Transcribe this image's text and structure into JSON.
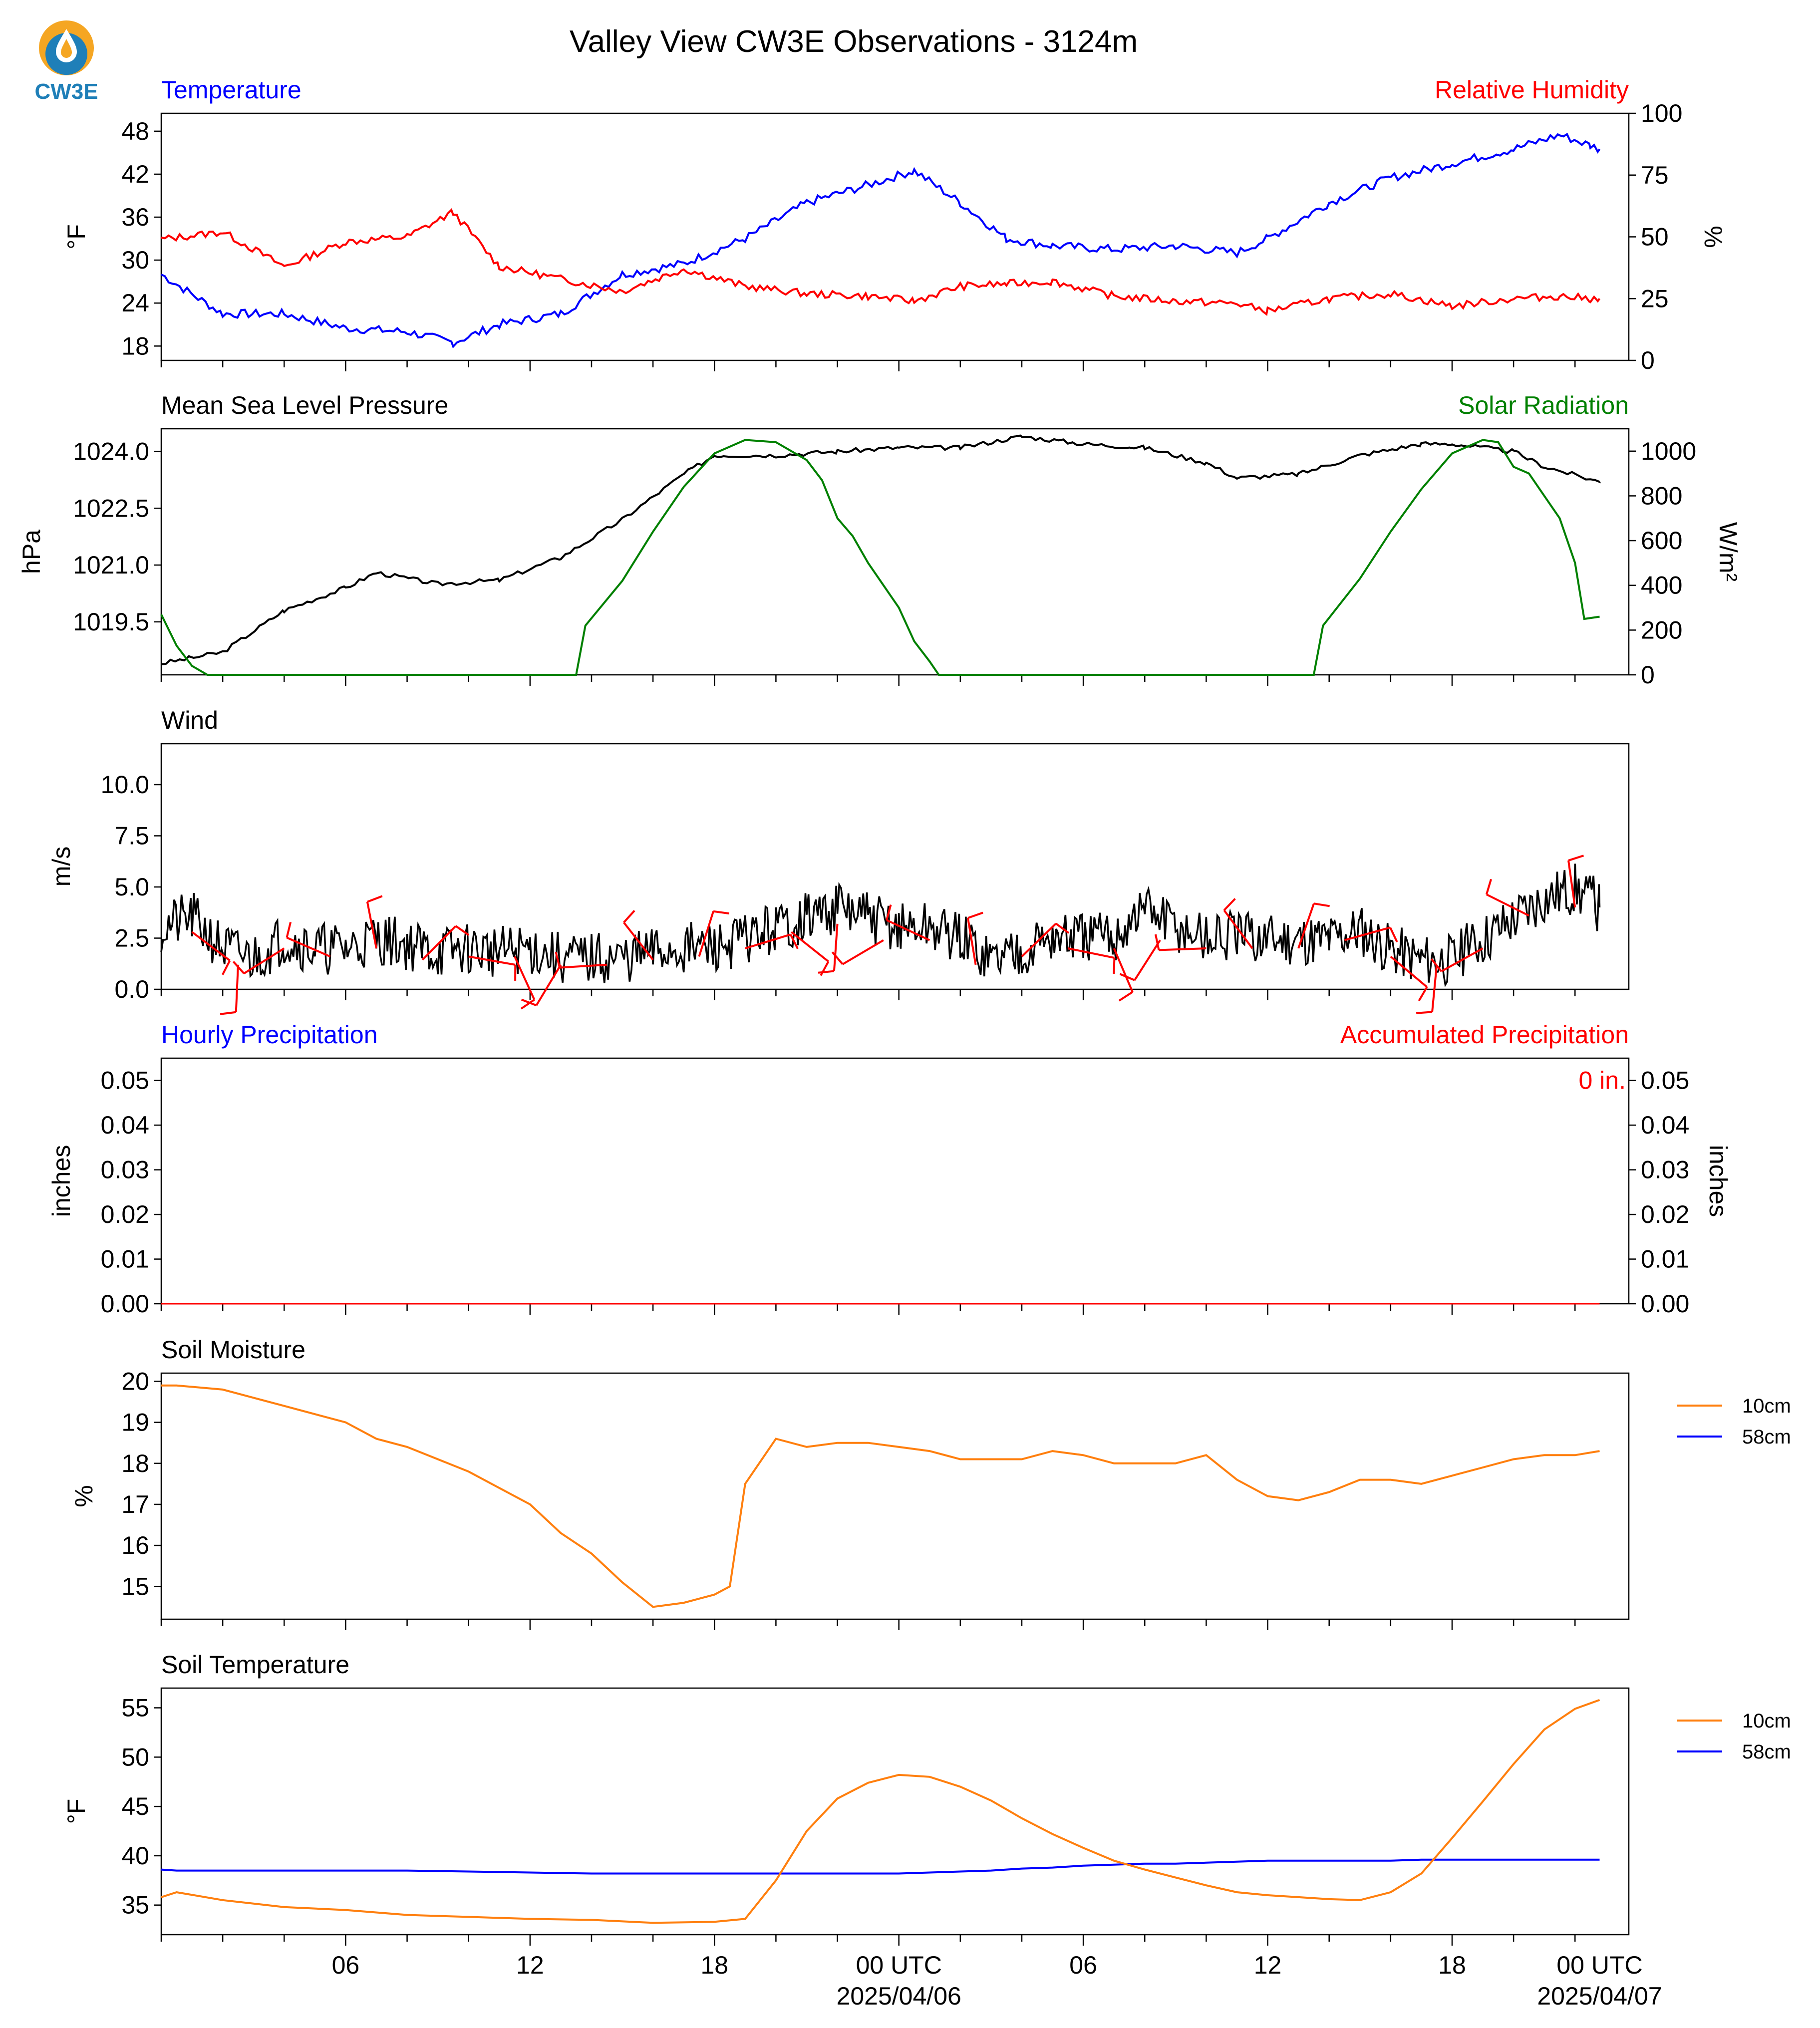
{
  "title": "Valley View CW3E Observations - 3124m",
  "logo": {
    "text": "CW3E",
    "icon": "water-drop-sun-logo-icon",
    "color_top": "#f5a623",
    "color_bottom": "#1f7fb8"
  },
  "colors": {
    "blue": "#0000ff",
    "red": "#ff0000",
    "green": "#008000",
    "black": "#000000",
    "orange": "#ff7f0e"
  },
  "x_axis": {
    "tick_labels": [
      "06",
      "12",
      "18",
      "00 UTC",
      "06",
      "12",
      "18",
      "00 UTC"
    ],
    "date_labels": [
      "2025/04/06",
      "2025/04/07"
    ]
  },
  "chart_data": [
    {
      "type": "line",
      "panel": "temperature-rh",
      "left_title": "Temperature",
      "right_title": "Relative Humidity",
      "ylabel": "°F",
      "ylabel2": "%",
      "yticks": [
        "48",
        "42",
        "36",
        "30",
        "24",
        "18"
      ],
      "yticks2": [
        "100",
        "75",
        "50",
        "25",
        "0"
      ],
      "ylim": [
        16,
        50.5
      ],
      "ylim2": [
        0,
        100
      ],
      "x_hours": [
        0,
        2,
        4,
        6,
        8,
        9.5,
        11,
        13,
        15,
        17,
        19,
        21,
        23,
        24.5,
        26,
        27.5,
        29,
        31,
        33,
        35,
        36,
        38,
        40,
        42,
        44,
        45.5,
        46.5,
        46.8
      ],
      "series": [
        {
          "name": "Temperature",
          "axis": "left",
          "color": "#0000ff",
          "values": [
            28,
            22.5,
            22.5,
            20.5,
            20,
            18.5,
            21,
            22.5,
            28,
            29.5,
            33,
            38,
            40.5,
            42.5,
            38,
            33,
            32,
            31.5,
            32,
            31,
            33,
            38,
            41.5,
            43.5,
            45.5,
            47.5,
            46,
            45.5
          ]
        },
        {
          "name": "Relative Humidity",
          "axis": "right",
          "color": "#ff0000",
          "values": [
            49,
            52,
            38,
            48,
            50,
            60,
            38,
            33,
            28,
            37,
            30,
            27,
            26,
            24,
            30,
            31,
            32,
            26,
            24,
            23,
            20,
            25,
            27,
            22,
            25,
            26,
            25,
            25
          ]
        }
      ]
    },
    {
      "type": "line",
      "panel": "pressure-solar",
      "left_title": "Mean Sea Level Pressure",
      "right_title": "Solar Radiation",
      "ylabel": "hPa",
      "ylabel2": "W/m²",
      "yticks": [
        "1024.0",
        "1022.5",
        "1021.0",
        "1019.5"
      ],
      "yticks2": [
        "1000",
        "800",
        "600",
        "400",
        "200",
        "0"
      ],
      "ylim": [
        1018.1,
        1024.6
      ],
      "ylim2": [
        0,
        1100
      ],
      "pressure_x": [
        0,
        2,
        4,
        6,
        7,
        9,
        11,
        13,
        15,
        17,
        18,
        20,
        22,
        24,
        26,
        28,
        30,
        32,
        34,
        35,
        37,
        39,
        41,
        42,
        44,
        45,
        46.8
      ],
      "pressure_values": [
        1018.4,
        1018.7,
        1019.8,
        1020.4,
        1020.8,
        1020.5,
        1020.6,
        1021.2,
        1022.2,
        1023.4,
        1023.9,
        1023.9,
        1024.0,
        1024.1,
        1024.1,
        1024.4,
        1024.2,
        1024.1,
        1023.7,
        1023.3,
        1023.4,
        1023.9,
        1024.2,
        1024.2,
        1024.0,
        1023.6,
        1023.2
      ],
      "solar_x": [
        0,
        0.5,
        1,
        1.5,
        13.5,
        13.8,
        15,
        16,
        17,
        18,
        19,
        20,
        21,
        21.5,
        22,
        22.5,
        23,
        24,
        24.5,
        25,
        25.3,
        37.5,
        37.8,
        39,
        40,
        41,
        42,
        43,
        43.5,
        44,
        44.5,
        45,
        45.5,
        46,
        46.3,
        46.8
      ],
      "solar_values": [
        270,
        130,
        40,
        0,
        0,
        220,
        420,
        640,
        840,
        990,
        1050,
        1040,
        960,
        870,
        700,
        620,
        500,
        300,
        150,
        60,
        0,
        0,
        220,
        430,
        640,
        830,
        990,
        1050,
        1040,
        930,
        900,
        800,
        700,
        500,
        250,
        260
      ],
      "series": [
        {
          "name": "Mean Sea Level Pressure",
          "axis": "left",
          "color": "#000000"
        },
        {
          "name": "Solar Radiation",
          "axis": "right",
          "color": "#008000"
        }
      ]
    },
    {
      "type": "line",
      "panel": "wind",
      "left_title": "Wind",
      "ylabel": "m/s",
      "yticks": [
        "10.0",
        "7.5",
        "5.0",
        "2.5",
        "0.0"
      ],
      "ylim": [
        0,
        12
      ],
      "x_hours": [
        0,
        1,
        2,
        3,
        4,
        5,
        6,
        7,
        8,
        9,
        10,
        11,
        12,
        13,
        14,
        15,
        16,
        17,
        18,
        19,
        20,
        21,
        22,
        23,
        24,
        25,
        26,
        27,
        28,
        29,
        30,
        31,
        32,
        33,
        34,
        35,
        36,
        37,
        38,
        39,
        40,
        41,
        42,
        43,
        44,
        45,
        46,
        46.8
      ],
      "values": [
        3.0,
        3.5,
        2.0,
        1.5,
        2.5,
        2.0,
        2.0,
        2.5,
        2.2,
        1.8,
        2.0,
        1.8,
        2.0,
        1.5,
        1.5,
        1.5,
        1.8,
        2.0,
        2.0,
        2.5,
        3.0,
        3.5,
        4.0,
        3.5,
        3.0,
        3.0,
        2.5,
        1.5,
        2.0,
        2.5,
        2.5,
        2.5,
        4.0,
        3.0,
        2.5,
        2.5,
        2.5,
        2.5,
        2.5,
        3.0,
        2.0,
        1.5,
        1.5,
        2.5,
        3.5,
        4.5,
        5.0,
        4.0
      ],
      "barb_color": "#ff0000",
      "series": [
        {
          "name": "Wind Speed",
          "color": "#000000"
        }
      ]
    },
    {
      "type": "line",
      "panel": "precipitation",
      "left_title": "Hourly Precipitation",
      "right_title": "Accumulated Precipitation",
      "ylabel": "inches",
      "ylabel2": "inches",
      "yticks": [
        "0.05",
        "0.04",
        "0.03",
        "0.02",
        "0.01",
        "0.00"
      ],
      "yticks2": [
        "0.05",
        "0.04",
        "0.03",
        "0.02",
        "0.01",
        "0.00"
      ],
      "ylim": [
        0,
        0.055
      ],
      "annotation": "0 in.",
      "x_hours": [
        0,
        46.8
      ],
      "series": [
        {
          "name": "Hourly Precipitation",
          "color": "#0000ff",
          "values": [
            0,
            0
          ]
        },
        {
          "name": "Accumulated Precipitation",
          "color": "#ff0000",
          "values": [
            0,
            0
          ]
        }
      ]
    },
    {
      "type": "line",
      "panel": "soil-moisture",
      "left_title": "Soil Moisture",
      "ylabel": "%",
      "yticks": [
        "20",
        "19",
        "18",
        "17",
        "16",
        "15"
      ],
      "ylim": [
        14.2,
        20.2
      ],
      "legend": [
        "10cm",
        "58cm"
      ],
      "legend_position": "right",
      "x_hours": [
        0,
        0.5,
        2,
        3,
        4,
        5,
        6,
        7,
        8,
        9,
        10,
        11,
        12,
        13,
        14,
        15,
        16,
        17,
        18,
        18.5,
        19,
        20,
        21,
        22,
        23,
        24,
        25,
        26,
        27,
        28,
        29,
        30,
        31,
        32,
        33,
        34,
        35,
        36,
        37,
        38,
        39,
        40,
        41,
        42,
        43,
        44,
        45,
        46,
        46.8
      ],
      "series": [
        {
          "name": "10cm",
          "color": "#ff7f0e",
          "values": [
            19.9,
            19.9,
            19.8,
            19.6,
            19.4,
            19.2,
            19.0,
            18.6,
            18.4,
            18.1,
            17.8,
            17.4,
            17.0,
            16.3,
            15.8,
            15.1,
            14.5,
            14.6,
            14.8,
            15.0,
            17.5,
            18.6,
            18.4,
            18.5,
            18.5,
            18.4,
            18.3,
            18.1,
            18.1,
            18.1,
            18.3,
            18.2,
            18.0,
            18.0,
            18.0,
            18.2,
            17.6,
            17.2,
            17.1,
            17.3,
            17.6,
            17.6,
            17.5,
            17.7,
            17.9,
            18.1,
            18.2,
            18.2,
            18.3
          ]
        },
        {
          "name": "58cm",
          "color": "#0000ff",
          "values": []
        }
      ]
    },
    {
      "type": "line",
      "panel": "soil-temperature",
      "left_title": "Soil Temperature",
      "ylabel": "°F",
      "yticks": [
        "55",
        "50",
        "45",
        "40",
        "35"
      ],
      "ylim": [
        32,
        57
      ],
      "legend": [
        "10cm",
        "58cm"
      ],
      "legend_position": "right",
      "x_hours": [
        0,
        0.5,
        2,
        4,
        6,
        8,
        10,
        12,
        14,
        16,
        18,
        19,
        20,
        21,
        22,
        23,
        24,
        25,
        26,
        27,
        28,
        29,
        30,
        31,
        32,
        33,
        34,
        35,
        36,
        37,
        38,
        39,
        40,
        41,
        42,
        43,
        44,
        45,
        46,
        46.8
      ],
      "series": [
        {
          "name": "10cm",
          "color": "#ff7f0e",
          "values": [
            35.8,
            36.3,
            35.5,
            34.8,
            34.5,
            34.0,
            33.8,
            33.6,
            33.5,
            33.2,
            33.3,
            33.6,
            37.5,
            42.5,
            45.8,
            47.4,
            48.2,
            48.0,
            47.0,
            45.6,
            43.8,
            42.2,
            40.8,
            39.5,
            38.6,
            37.8,
            37.0,
            36.3,
            36.0,
            35.8,
            35.6,
            35.5,
            36.3,
            38.2,
            41.8,
            45.5,
            49.3,
            52.8,
            54.9,
            55.8
          ]
        },
        {
          "name": "58cm",
          "color": "#0000ff",
          "values": [
            38.6,
            38.5,
            38.5,
            38.5,
            38.5,
            38.5,
            38.4,
            38.3,
            38.2,
            38.2,
            38.2,
            38.2,
            38.2,
            38.2,
            38.2,
            38.2,
            38.2,
            38.3,
            38.4,
            38.5,
            38.7,
            38.8,
            39.0,
            39.1,
            39.2,
            39.2,
            39.3,
            39.4,
            39.5,
            39.5,
            39.5,
            39.5,
            39.5,
            39.6,
            39.6,
            39.6,
            39.6,
            39.6,
            39.6,
            39.6
          ]
        }
      ]
    }
  ]
}
